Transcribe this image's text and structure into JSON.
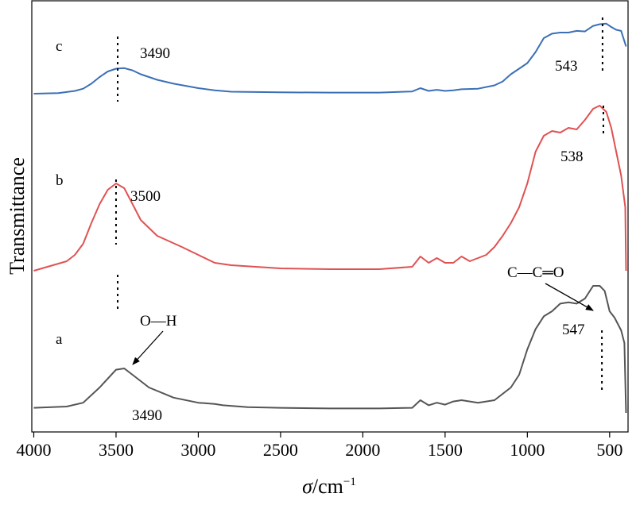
{
  "chart_data": {
    "type": "line",
    "title": "",
    "xlabel": "σ/cm⁻¹",
    "xlabel_parts": {
      "symbol": "σ",
      "unit": "/cm",
      "exponent": "−1"
    },
    "ylabel": "Transmittance",
    "xlim": [
      4000,
      400
    ],
    "x_reversed": true,
    "x_ticks": [
      4000,
      3500,
      3000,
      2500,
      2000,
      1500,
      1000,
      500
    ],
    "x_tick_labels": [
      "4000",
      "3500",
      "3000",
      "2500",
      "2000",
      "1500",
      "1000",
      "500"
    ],
    "y_ticks_shown": false,
    "grid": false,
    "legend": "none",
    "series": [
      {
        "label": "a",
        "color": "#555555",
        "points": [
          [
            4000,
            0.04
          ],
          [
            3800,
            0.05
          ],
          [
            3700,
            0.08
          ],
          [
            3600,
            0.2
          ],
          [
            3500,
            0.34
          ],
          [
            3450,
            0.35
          ],
          [
            3400,
            0.3
          ],
          [
            3300,
            0.2
          ],
          [
            3150,
            0.12
          ],
          [
            3000,
            0.08
          ],
          [
            2900,
            0.07
          ],
          [
            2850,
            0.06
          ],
          [
            2700,
            0.045
          ],
          [
            2500,
            0.04
          ],
          [
            2200,
            0.035
          ],
          [
            1900,
            0.035
          ],
          [
            1700,
            0.04
          ],
          [
            1650,
            0.1
          ],
          [
            1600,
            0.06
          ],
          [
            1550,
            0.08
          ],
          [
            1500,
            0.065
          ],
          [
            1450,
            0.09
          ],
          [
            1400,
            0.1
          ],
          [
            1300,
            0.08
          ],
          [
            1200,
            0.1
          ],
          [
            1100,
            0.2
          ],
          [
            1050,
            0.3
          ],
          [
            1000,
            0.5
          ],
          [
            950,
            0.66
          ],
          [
            900,
            0.76
          ],
          [
            850,
            0.8
          ],
          [
            800,
            0.86
          ],
          [
            750,
            0.87
          ],
          [
            700,
            0.86
          ],
          [
            650,
            0.9
          ],
          [
            600,
            1.0
          ],
          [
            560,
            1.0
          ],
          [
            530,
            0.96
          ],
          [
            500,
            0.8
          ],
          [
            470,
            0.75
          ],
          [
            430,
            0.65
          ],
          [
            410,
            0.55
          ],
          [
            400,
            0.0
          ]
        ]
      },
      {
        "label": "b",
        "color": "#e05252",
        "points": [
          [
            4000,
            0.0
          ],
          [
            3900,
            0.03
          ],
          [
            3800,
            0.06
          ],
          [
            3750,
            0.1
          ],
          [
            3700,
            0.17
          ],
          [
            3650,
            0.3
          ],
          [
            3600,
            0.42
          ],
          [
            3550,
            0.51
          ],
          [
            3500,
            0.55
          ],
          [
            3450,
            0.52
          ],
          [
            3400,
            0.42
          ],
          [
            3350,
            0.32
          ],
          [
            3250,
            0.22
          ],
          [
            3100,
            0.15
          ],
          [
            3000,
            0.1
          ],
          [
            2900,
            0.05
          ],
          [
            2800,
            0.035
          ],
          [
            2500,
            0.015
          ],
          [
            2200,
            0.01
          ],
          [
            1900,
            0.01
          ],
          [
            1700,
            0.025
          ],
          [
            1650,
            0.09
          ],
          [
            1600,
            0.05
          ],
          [
            1550,
            0.08
          ],
          [
            1500,
            0.05
          ],
          [
            1450,
            0.05
          ],
          [
            1400,
            0.09
          ],
          [
            1350,
            0.06
          ],
          [
            1250,
            0.1
          ],
          [
            1200,
            0.15
          ],
          [
            1150,
            0.22
          ],
          [
            1100,
            0.3
          ],
          [
            1050,
            0.4
          ],
          [
            1000,
            0.55
          ],
          [
            950,
            0.75
          ],
          [
            900,
            0.85
          ],
          [
            850,
            0.88
          ],
          [
            800,
            0.87
          ],
          [
            750,
            0.9
          ],
          [
            700,
            0.89
          ],
          [
            650,
            0.95
          ],
          [
            600,
            1.02
          ],
          [
            560,
            1.04
          ],
          [
            520,
            1.0
          ],
          [
            490,
            0.9
          ],
          [
            460,
            0.75
          ],
          [
            430,
            0.6
          ],
          [
            405,
            0.4
          ],
          [
            400,
            0.0
          ]
        ]
      },
      {
        "label": "c",
        "color": "#3b6fb6",
        "points": [
          [
            4000,
            0.0
          ],
          [
            3850,
            0.01
          ],
          [
            3750,
            0.05
          ],
          [
            3700,
            0.09
          ],
          [
            3650,
            0.18
          ],
          [
            3600,
            0.3
          ],
          [
            3550,
            0.4
          ],
          [
            3500,
            0.45
          ],
          [
            3450,
            0.46
          ],
          [
            3400,
            0.42
          ],
          [
            3350,
            0.35
          ],
          [
            3250,
            0.25
          ],
          [
            3150,
            0.18
          ],
          [
            3000,
            0.1
          ],
          [
            2900,
            0.06
          ],
          [
            2800,
            0.035
          ],
          [
            2500,
            0.025
          ],
          [
            2200,
            0.02
          ],
          [
            1900,
            0.02
          ],
          [
            1700,
            0.04
          ],
          [
            1650,
            0.1
          ],
          [
            1600,
            0.05
          ],
          [
            1550,
            0.07
          ],
          [
            1500,
            0.05
          ],
          [
            1450,
            0.06
          ],
          [
            1400,
            0.08
          ],
          [
            1300,
            0.09
          ],
          [
            1200,
            0.15
          ],
          [
            1150,
            0.22
          ],
          [
            1100,
            0.35
          ],
          [
            1050,
            0.45
          ],
          [
            1000,
            0.55
          ],
          [
            950,
            0.75
          ],
          [
            900,
            1.0
          ],
          [
            850,
            1.08
          ],
          [
            800,
            1.1
          ],
          [
            750,
            1.1
          ],
          [
            700,
            1.13
          ],
          [
            650,
            1.12
          ],
          [
            600,
            1.22
          ],
          [
            560,
            1.25
          ],
          [
            520,
            1.26
          ],
          [
            490,
            1.2
          ],
          [
            460,
            1.15
          ],
          [
            430,
            1.13
          ],
          [
            400,
            0.85
          ]
        ]
      }
    ],
    "annotations": [
      {
        "text": "c",
        "role": "series-tag",
        "series": "c"
      },
      {
        "text": "b",
        "role": "series-tag",
        "series": "b"
      },
      {
        "text": "a",
        "role": "series-tag",
        "series": "a"
      },
      {
        "text": "3490",
        "role": "peak-label",
        "series": "c",
        "x": 3490
      },
      {
        "text": "543",
        "role": "peak-label",
        "series": "c",
        "x": 543
      },
      {
        "text": "3500",
        "role": "peak-label",
        "series": "b",
        "x": 3500
      },
      {
        "text": "538",
        "role": "peak-label",
        "series": "b",
        "x": 538
      },
      {
        "text": "3490",
        "role": "peak-label",
        "series": "a",
        "x": 3490
      },
      {
        "text": "547",
        "role": "peak-label",
        "series": "a",
        "x": 547
      },
      {
        "text": "O—H",
        "role": "bond-label",
        "series": "a",
        "x": 3490
      },
      {
        "text": "C—C═O",
        "role": "bond-label",
        "series": "a",
        "x": 547
      }
    ]
  }
}
